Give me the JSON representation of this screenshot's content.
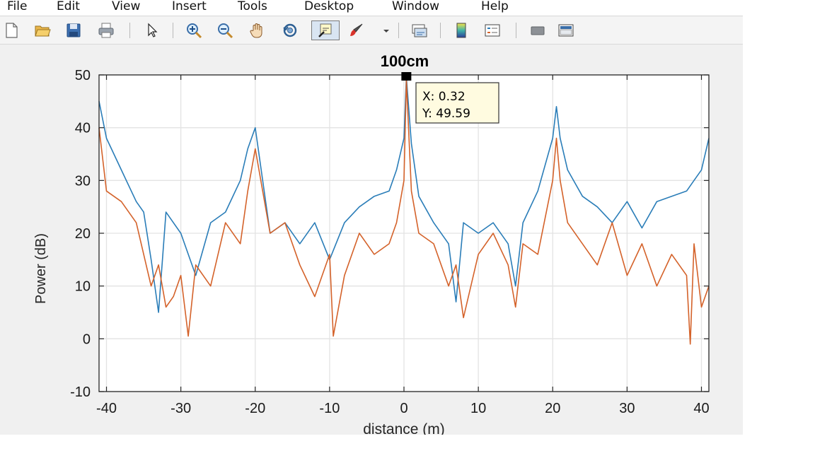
{
  "menu": [
    "File",
    "Edit",
    "View",
    "Insert",
    "Tools",
    "Desktop",
    "Window",
    "Help"
  ],
  "toolbar": {
    "icons": [
      "new-file-icon",
      "open-folder-icon",
      "save-icon",
      "print-icon",
      "pointer-icon",
      "zoom-in-icon",
      "zoom-out-icon",
      "pan-hand-icon",
      "rotate-3d-icon",
      "data-cursor-icon",
      "brush-icon",
      "brush-dropdown-icon",
      "link-plot-icon",
      "colorbar-icon",
      "legend-icon",
      "hide-plot-tools-icon",
      "show-plot-tools-icon"
    ]
  },
  "datatip": {
    "x_text": "X: 0.32",
    "y_text": "Y: 49.59"
  },
  "chart_data": {
    "type": "line",
    "title": "100cm",
    "xlabel": "distance (m)",
    "ylabel": "Power (dB)",
    "xlim": [
      -41,
      41
    ],
    "ylim": [
      -10,
      50
    ],
    "xticks": [
      "-40",
      "-30",
      "-20",
      "-10",
      "0",
      "10",
      "20",
      "30",
      "40"
    ],
    "yticks": [
      "50",
      "40",
      "30",
      "20",
      "10",
      "0",
      "-10"
    ],
    "grid": true,
    "series": [
      {
        "color": "#2a7db8",
        "x": [
          -41,
          -40,
          -38,
          -36,
          -35,
          -34,
          -33,
          -32,
          -30,
          -28,
          -26,
          -24,
          -22,
          -21,
          -20,
          -19,
          -18,
          -16,
          -14,
          -12,
          -10,
          -8,
          -6,
          -4,
          -2,
          -1,
          0,
          0.32,
          1,
          2,
          4,
          6,
          7,
          8,
          10,
          12,
          14,
          15,
          16,
          18,
          20,
          20.5,
          21,
          22,
          24,
          26,
          28,
          30,
          32,
          34,
          36,
          38,
          39,
          40,
          41
        ],
        "values": [
          45,
          38,
          32,
          26,
          24,
          15,
          5,
          24,
          20,
          12,
          22,
          24,
          30,
          36,
          40,
          30,
          20,
          22,
          18,
          22,
          15,
          22,
          25,
          27,
          28,
          32,
          38,
          49.59,
          37,
          27,
          22,
          18,
          7,
          22,
          20,
          22,
          18,
          10,
          22,
          28,
          38,
          44,
          38,
          32,
          27,
          25,
          22,
          26,
          21,
          26,
          27,
          28,
          30,
          32,
          38
        ]
      },
      {
        "color": "#d4622a",
        "x": [
          -41,
          -40,
          -38,
          -36,
          -34,
          -33,
          -32,
          -31,
          -30,
          -29,
          -28,
          -26,
          -24,
          -22,
          -21,
          -20,
          -19,
          -18,
          -16,
          -14,
          -12,
          -10,
          -9.5,
          -8,
          -6,
          -4,
          -2,
          -1,
          0,
          0.32,
          1,
          2,
          4,
          6,
          7,
          8,
          10,
          12,
          14,
          15,
          16,
          18,
          20,
          20.5,
          21,
          22,
          24,
          26,
          28,
          30,
          32,
          34,
          36,
          38,
          38.5,
          39,
          40,
          41
        ],
        "values": [
          40,
          28,
          26,
          22,
          10,
          14,
          6,
          8,
          12,
          0.5,
          14,
          10,
          22,
          18,
          28,
          36,
          28,
          20,
          22,
          14,
          8,
          16,
          0.5,
          12,
          20,
          16,
          18,
          22,
          30,
          49,
          28,
          20,
          18,
          10,
          14,
          4,
          16,
          20,
          14,
          6,
          18,
          16,
          30,
          38,
          30,
          22,
          18,
          14,
          22,
          12,
          18,
          10,
          16,
          12,
          -1,
          18,
          6,
          10
        ]
      }
    ]
  }
}
